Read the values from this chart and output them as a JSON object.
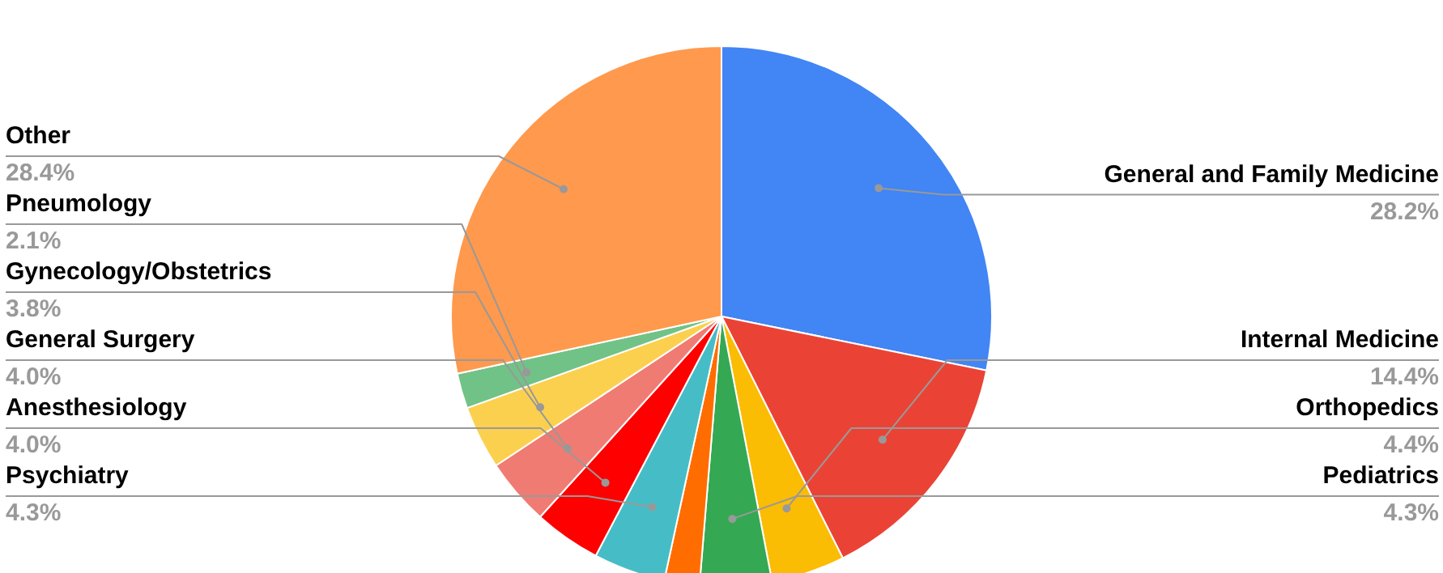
{
  "chart_data": {
    "type": "pie",
    "categories": [
      "General and Family Medicine",
      "Internal Medicine",
      "Orthopedics",
      "Pediatrics",
      null,
      "Psychiatry",
      "Anesthesiology",
      "General Surgery",
      "Gynecology/Obstetrics",
      "Pneumology",
      "Other"
    ],
    "values": [
      28.2,
      14.4,
      4.4,
      4.3,
      2.1,
      4.3,
      4.0,
      4.0,
      3.8,
      2.1,
      28.4
    ],
    "colors": [
      "#4285f4",
      "#ea4335",
      "#fbbc04",
      "#34a853",
      "#ff6d01",
      "#46bdc6",
      "#ff0000",
      "#f07b72",
      "#fcd04f",
      "#71c287",
      "#ff994d"
    ],
    "value_labels": [
      "28.2%",
      "14.4%",
      "4.4%",
      "4.3%",
      null,
      "4.3%",
      "4.0%",
      "4.0%",
      "3.8%",
      "2.1%",
      "28.4%"
    ]
  }
}
